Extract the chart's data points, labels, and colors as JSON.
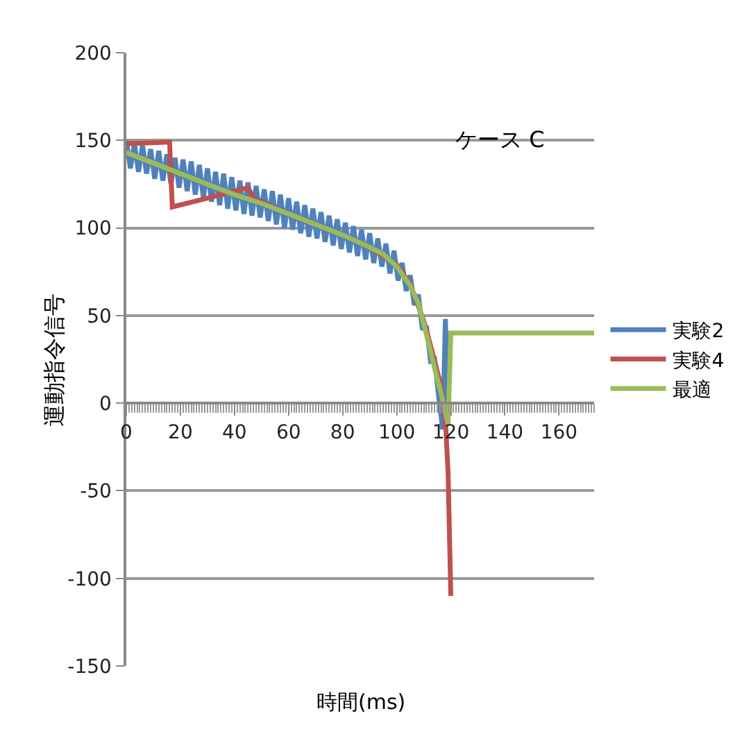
{
  "chart_data": {
    "type": "line",
    "xlabel": "時間(ms)",
    "ylabel": "運動指令信号",
    "annotations": [
      "ケース C"
    ],
    "xlim": [
      0,
      173
    ],
    "xticks": [
      0,
      20,
      40,
      60,
      80,
      100,
      120,
      140,
      160
    ],
    "ylim": [
      -150,
      200
    ],
    "yticks": [
      -150,
      -100,
      -50,
      0,
      50,
      100,
      150,
      200
    ],
    "grid": "y",
    "legend": "right",
    "marker": "none",
    "line_style": "solid",
    "series": [
      {
        "name": "実験2",
        "color": "#4f81bd",
        "x": [
          0,
          1.5,
          3,
          4.5,
          6,
          7.5,
          9,
          10.5,
          12,
          13.5,
          15,
          16.5,
          18,
          19.5,
          21,
          22.5,
          24,
          25.5,
          27,
          28.5,
          30,
          31.5,
          33,
          34.5,
          36,
          37.5,
          39,
          40.5,
          42,
          43.5,
          45,
          46.5,
          48,
          49.5,
          51,
          52.5,
          54,
          55.5,
          57,
          58.5,
          60,
          61.5,
          63,
          64.5,
          66,
          67.5,
          69,
          70.5,
          72,
          73.5,
          75,
          76.5,
          78,
          79.5,
          81,
          82.5,
          84,
          85.5,
          87,
          88.5,
          90,
          91.5,
          93,
          94.5,
          96,
          97.5,
          99,
          100.5,
          102,
          103.5,
          105,
          106.5,
          108,
          109.5,
          111,
          112.5,
          114,
          115.5,
          117,
          118,
          119
        ],
        "values": [
          150,
          134,
          148,
          132,
          147,
          131,
          145,
          128,
          144,
          127,
          142,
          125,
          140,
          123,
          139,
          121,
          138,
          119,
          136,
          117,
          134,
          115,
          132,
          113,
          131,
          111,
          129,
          110,
          127,
          108,
          126,
          107,
          124,
          106,
          122,
          104,
          121,
          102,
          119,
          100,
          117,
          99,
          115,
          97,
          113,
          95,
          111,
          94,
          109,
          92,
          107,
          90,
          105,
          88,
          103,
          86,
          101,
          84,
          99,
          82,
          97,
          80,
          94,
          78,
          91,
          74,
          87,
          70,
          80,
          64,
          73,
          56,
          62,
          42,
          44,
          24,
          25,
          4,
          -15,
          48,
          -5
        ]
      },
      {
        "name": "実験4",
        "color": "#c0504d",
        "x": [
          0,
          16,
          17,
          30,
          45,
          47,
          60,
          80,
          90,
          100,
          105,
          110,
          113,
          116,
          118,
          119,
          120
        ],
        "values": [
          148,
          149,
          112,
          117,
          123,
          117,
          108,
          96,
          89,
          79,
          68,
          47,
          30,
          12,
          -10,
          -40,
          -110
        ]
      },
      {
        "name": "最適",
        "color": "#9bbb59",
        "x": [
          0,
          10,
          20,
          30,
          40,
          50,
          60,
          70,
          80,
          90,
          95,
          100,
          105,
          108,
          110,
          112,
          114,
          116,
          118,
          119,
          120,
          173
        ],
        "values": [
          143,
          137,
          131,
          125,
          119,
          114,
          108,
          102,
          96,
          89,
          85,
          78,
          67,
          57,
          45,
          33,
          20,
          8,
          -5,
          -12,
          40,
          40
        ]
      }
    ]
  }
}
